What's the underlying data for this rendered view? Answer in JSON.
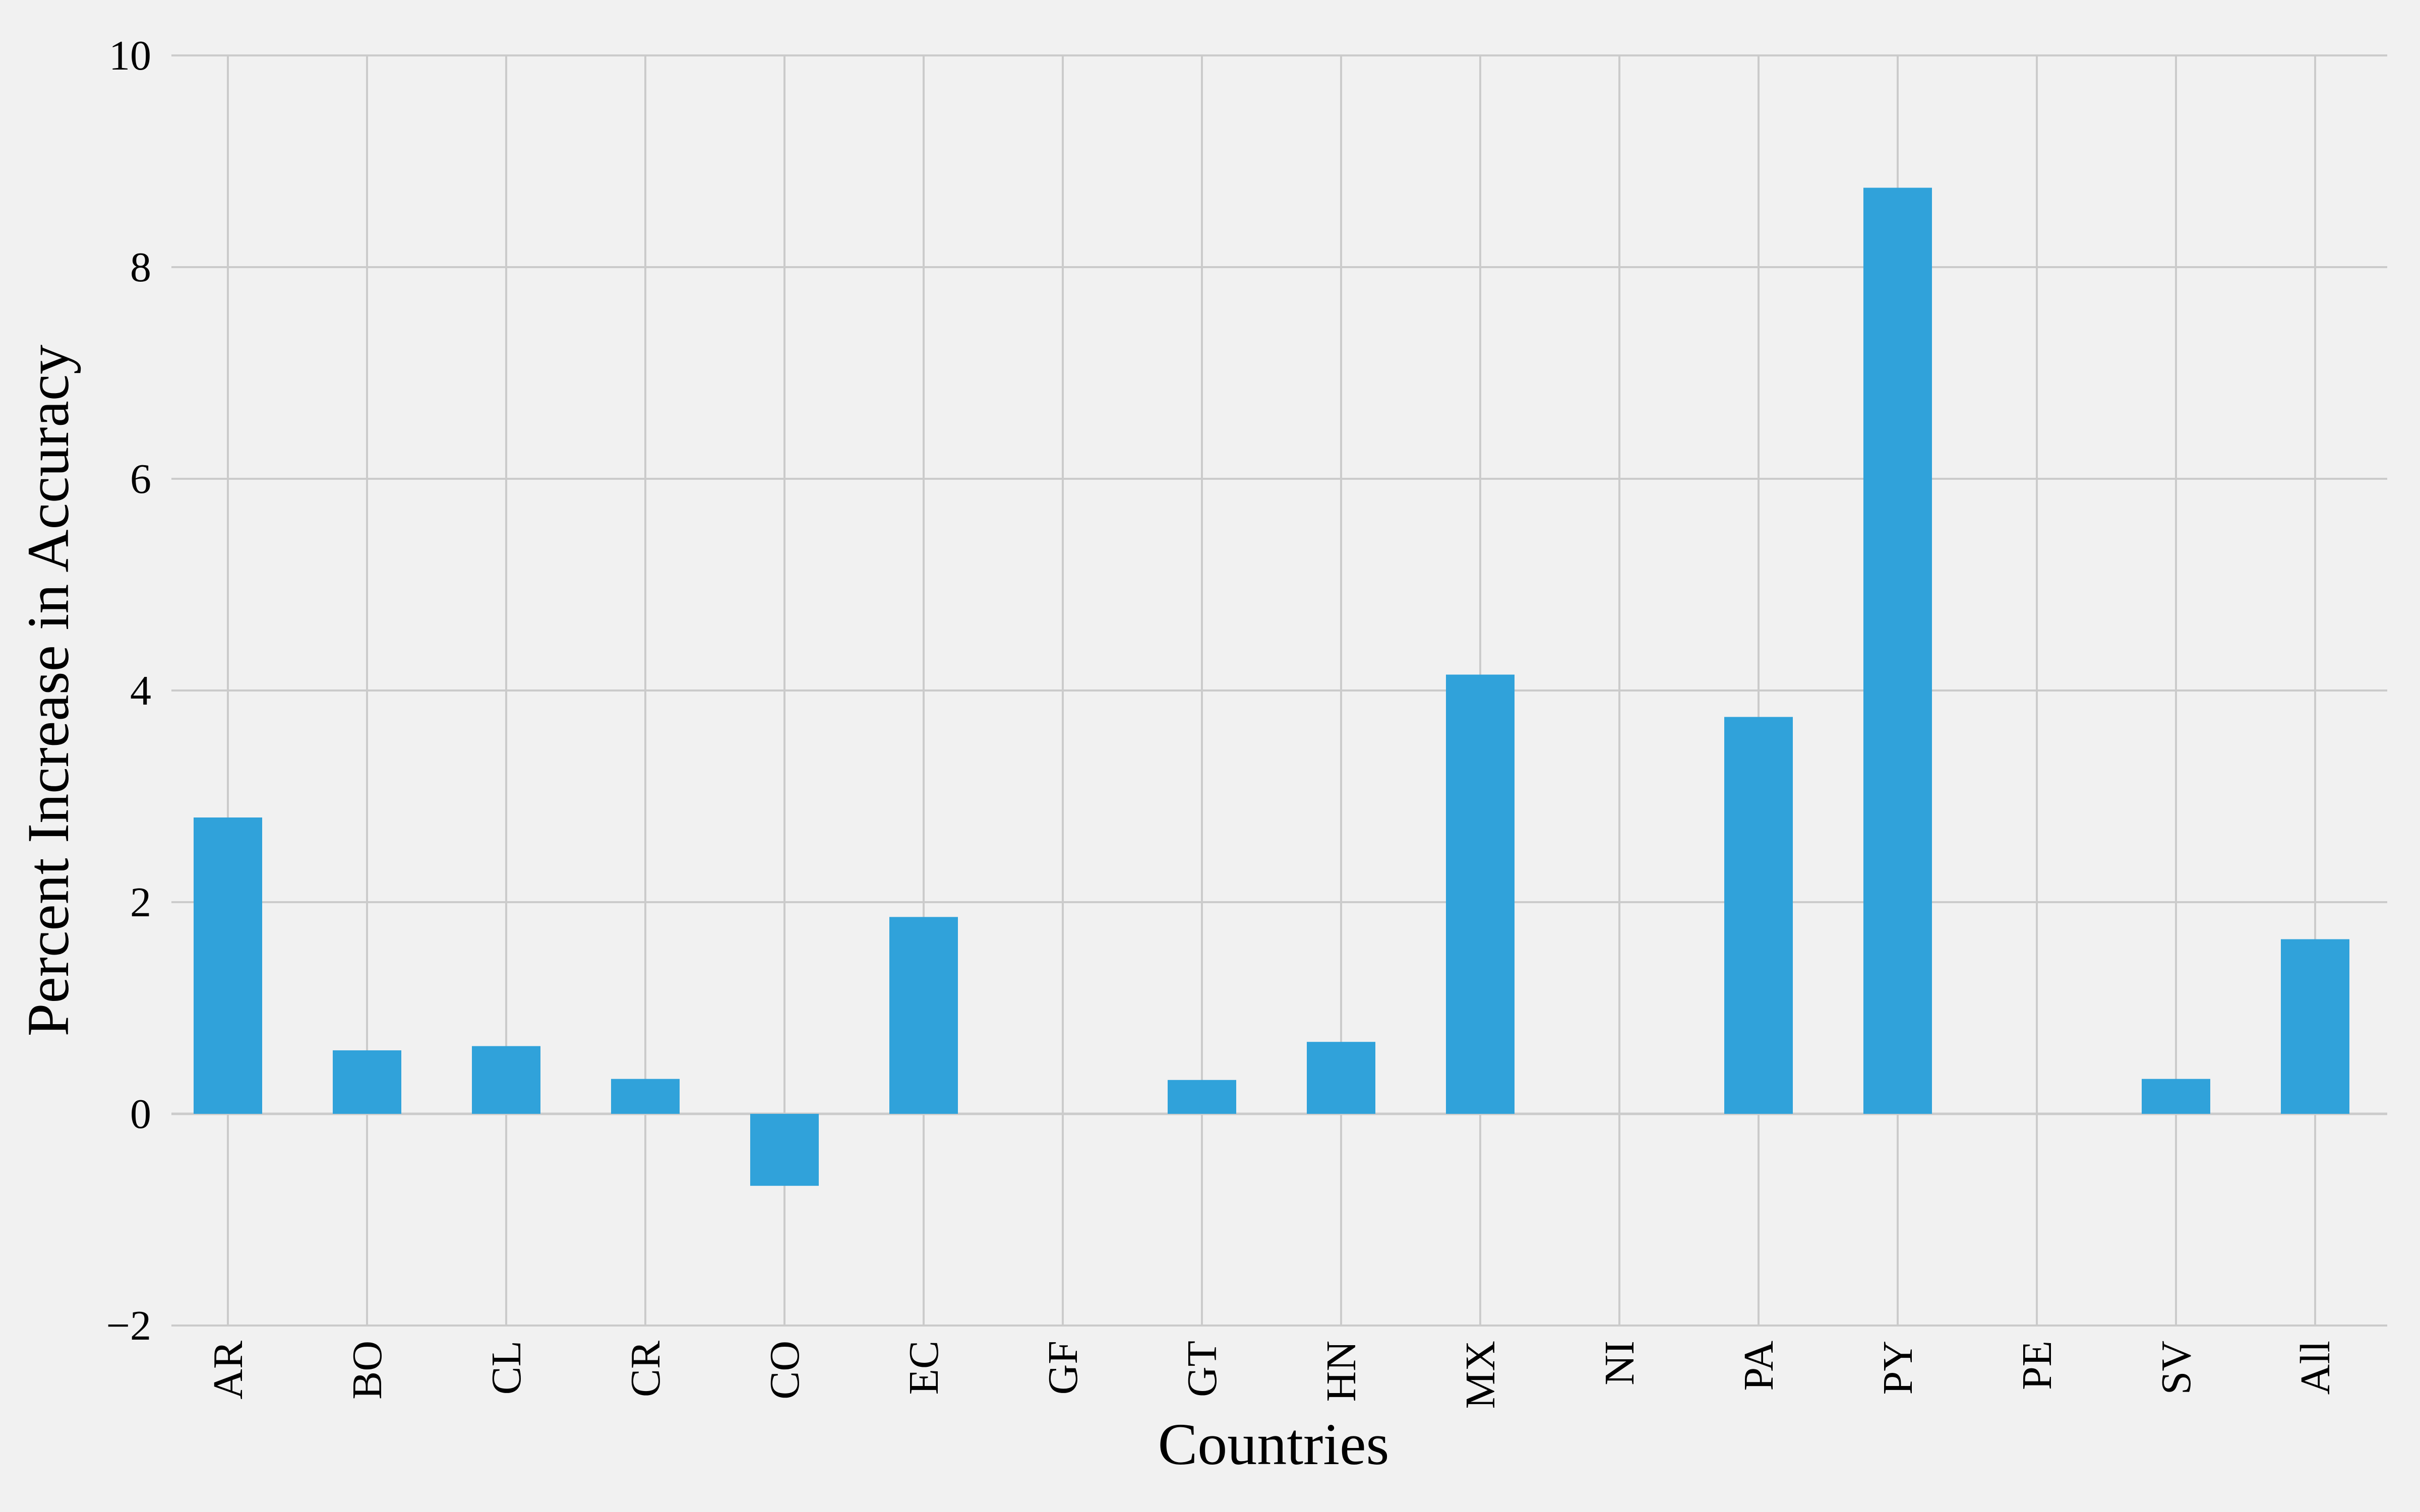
{
  "chart_data": {
    "type": "bar",
    "title": "",
    "xlabel": "Countries",
    "ylabel": "Percent Increase in Accuracy",
    "ylim": [
      -2,
      10
    ],
    "yticks": [
      -2,
      0,
      2,
      4,
      6,
      8,
      10
    ],
    "ytick_labels": [
      "−2",
      "0",
      "2",
      "4",
      "6",
      "8",
      "10"
    ],
    "categories": [
      "AR",
      "BO",
      "CL",
      "CR",
      "CO",
      "EC",
      "GF",
      "GT",
      "HN",
      "MX",
      "NI",
      "PA",
      "PY",
      "PE",
      "SV",
      "All"
    ],
    "values": [
      2.8,
      0.6,
      0.64,
      0.33,
      -0.68,
      1.86,
      0.0,
      0.32,
      0.68,
      4.15,
      0.0,
      3.75,
      8.75,
      0.0,
      0.33,
      1.65
    ],
    "bar_color": "#30a2da",
    "background_color": "#f1f1f1",
    "grid": true,
    "legend": "none"
  }
}
